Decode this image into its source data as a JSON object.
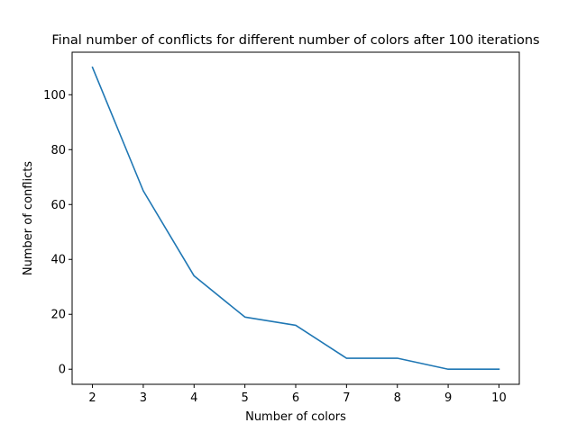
{
  "chart_data": {
    "type": "line",
    "title": "Final number of conflicts for different number of colors after 100 iterations",
    "xlabel": "Number of colors",
    "ylabel": "Number of conflicts",
    "x": [
      2,
      3,
      4,
      5,
      6,
      7,
      8,
      9,
      10
    ],
    "series": [
      {
        "values": [
          110,
          65,
          34,
          19,
          16,
          4,
          4,
          0,
          0
        ],
        "color": "#1f77b4"
      }
    ],
    "xlim": [
      1.6,
      10.4
    ],
    "ylim": [
      -5.5,
      115.5
    ],
    "xticks": [
      2,
      3,
      4,
      5,
      6,
      7,
      8,
      9,
      10
    ],
    "yticks": [
      0,
      20,
      40,
      60,
      80,
      100
    ],
    "grid": false,
    "legend": "none"
  }
}
